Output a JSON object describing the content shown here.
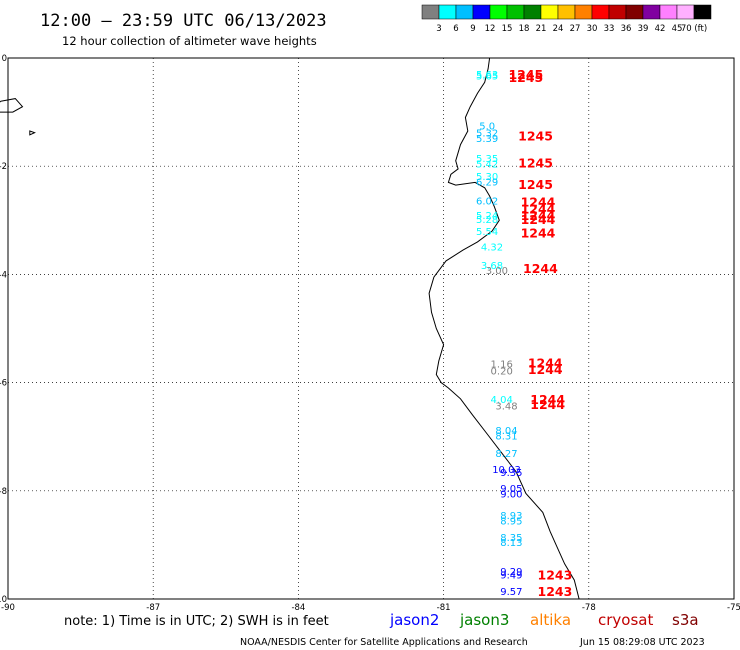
{
  "header": {
    "title": "12:00 – 23:59 UTC 06/13/2023",
    "subtitle": "12 hour collection of altimeter wave heights"
  },
  "colorbar": {
    "colors": [
      "#808080",
      "#00ffff",
      "#00bfff",
      "#0000ff",
      "#00ff00",
      "#00c000",
      "#008000",
      "#ffff00",
      "#ffc000",
      "#ff8000",
      "#ff0000",
      "#c00000",
      "#800000",
      "#8000a0",
      "#ff80ff",
      "#ffb0ff",
      "#000000"
    ],
    "labels": [
      "3",
      "6",
      "9",
      "12",
      "15",
      "18",
      "21",
      "24",
      "27",
      "30",
      "33",
      "36",
      "39",
      "42",
      "45",
      "70 (ft)"
    ]
  },
  "chart_data": {
    "type": "scatter",
    "xlim": [
      -90,
      -75
    ],
    "ylim": [
      -10,
      0
    ],
    "x_ticks": [
      "-90",
      "-87",
      "-84",
      "-81",
      "-78",
      "-75"
    ],
    "y_ticks": [
      "0",
      "-2",
      "-4",
      "-6",
      "-8",
      "-10"
    ],
    "grid": true,
    "wave_heights": [
      {
        "lon": -80.1,
        "lat": -0.3,
        "value": "5.63",
        "color": "#00ffff"
      },
      {
        "lon": -80.1,
        "lat": -0.32,
        "value": "5.65",
        "color": "#00ffff"
      },
      {
        "lon": -80.1,
        "lat": -1.25,
        "value": "5.0",
        "color": "#00bfff"
      },
      {
        "lon": -80.1,
        "lat": -1.38,
        "value": "5.32",
        "color": "#00bfff"
      },
      {
        "lon": -80.1,
        "lat": -1.48,
        "value": "5.39",
        "color": "#00bfff"
      },
      {
        "lon": -80.1,
        "lat": -1.85,
        "value": "5.35",
        "color": "#00ffff"
      },
      {
        "lon": -80.1,
        "lat": -1.95,
        "value": "5.42",
        "color": "#00ffff"
      },
      {
        "lon": -80.1,
        "lat": -2.18,
        "value": "5.30",
        "color": "#00ffff"
      },
      {
        "lon": -80.1,
        "lat": -2.28,
        "value": "6.29",
        "color": "#00bfff"
      },
      {
        "lon": -80.1,
        "lat": -2.63,
        "value": "6.02",
        "color": "#00bfff"
      },
      {
        "lon": -80.1,
        "lat": -2.9,
        "value": "5.24",
        "color": "#00ffff"
      },
      {
        "lon": -80.1,
        "lat": -2.98,
        "value": "5.28",
        "color": "#00ffff"
      },
      {
        "lon": -80.1,
        "lat": -3.2,
        "value": "5.54",
        "color": "#00ffff"
      },
      {
        "lon": -80.0,
        "lat": -3.48,
        "value": "4.32",
        "color": "#00ffff"
      },
      {
        "lon": -80.0,
        "lat": -3.83,
        "value": "3.68",
        "color": "#00ffff"
      },
      {
        "lon": -79.9,
        "lat": -3.92,
        "value": "3.00",
        "color": "#808080"
      },
      {
        "lon": -79.8,
        "lat": -5.65,
        "value": "1.16",
        "color": "#808080"
      },
      {
        "lon": -79.8,
        "lat": -5.78,
        "value": "0.20",
        "color": "#808080"
      },
      {
        "lon": -79.8,
        "lat": -6.3,
        "value": "4.04",
        "color": "#00ffff"
      },
      {
        "lon": -79.7,
        "lat": -6.42,
        "value": "3.48",
        "color": "#808080"
      },
      {
        "lon": -79.7,
        "lat": -6.88,
        "value": "8.04",
        "color": "#00bfff"
      },
      {
        "lon": -79.7,
        "lat": -6.98,
        "value": "8.31",
        "color": "#00bfff"
      },
      {
        "lon": -79.7,
        "lat": -7.3,
        "value": "8.27",
        "color": "#00bfff"
      },
      {
        "lon": -79.7,
        "lat": -7.6,
        "value": "10.03",
        "color": "#0000ff"
      },
      {
        "lon": -79.6,
        "lat": -7.65,
        "value": "9.35",
        "color": "#0000ff"
      },
      {
        "lon": -79.6,
        "lat": -7.95,
        "value": "9.05",
        "color": "#0000ff"
      },
      {
        "lon": -79.6,
        "lat": -8.05,
        "value": "9.00",
        "color": "#0000ff"
      },
      {
        "lon": -79.6,
        "lat": -8.45,
        "value": "8.93",
        "color": "#00bfff"
      },
      {
        "lon": -79.6,
        "lat": -8.55,
        "value": "8.95",
        "color": "#00bfff"
      },
      {
        "lon": -79.6,
        "lat": -8.85,
        "value": "8.35",
        "color": "#00bfff"
      },
      {
        "lon": -79.6,
        "lat": -8.95,
        "value": "8.13",
        "color": "#00bfff"
      },
      {
        "lon": -79.6,
        "lat": -9.48,
        "value": "9.29",
        "color": "#0000ff"
      },
      {
        "lon": -79.6,
        "lat": -9.55,
        "value": "9.49",
        "color": "#0000ff"
      },
      {
        "lon": -79.6,
        "lat": -9.85,
        "value": "9.57",
        "color": "#0000ff"
      }
    ],
    "time_labels": [
      {
        "lon": -79.3,
        "lat": -0.3,
        "value": "1245"
      },
      {
        "lon": -79.3,
        "lat": -0.35,
        "value": "1245"
      },
      {
        "lon": -79.1,
        "lat": -1.43,
        "value": "1245"
      },
      {
        "lon": -79.1,
        "lat": -1.93,
        "value": "1245"
      },
      {
        "lon": -79.1,
        "lat": -2.33,
        "value": "1245"
      },
      {
        "lon": -79.05,
        "lat": -2.65,
        "value": "1244"
      },
      {
        "lon": -79.05,
        "lat": -2.78,
        "value": "1244"
      },
      {
        "lon": -79.05,
        "lat": -2.9,
        "value": "1244"
      },
      {
        "lon": -79.05,
        "lat": -2.98,
        "value": "1244"
      },
      {
        "lon": -79.05,
        "lat": -3.23,
        "value": "1244"
      },
      {
        "lon": -79.0,
        "lat": -3.88,
        "value": "1244"
      },
      {
        "lon": -78.9,
        "lat": -5.63,
        "value": "1244"
      },
      {
        "lon": -78.9,
        "lat": -5.75,
        "value": "1244"
      },
      {
        "lon": -78.85,
        "lat": -6.3,
        "value": "1244"
      },
      {
        "lon": -78.85,
        "lat": -6.4,
        "value": "1244"
      },
      {
        "lon": -78.7,
        "lat": -9.55,
        "value": "1243"
      },
      {
        "lon": -78.7,
        "lat": -9.85,
        "value": "1243"
      }
    ],
    "coastline": [
      [
        -80.05,
        0
      ],
      [
        -80.08,
        -0.2
      ],
      [
        -80.15,
        -0.45
      ],
      [
        -80.3,
        -0.65
      ],
      [
        -80.45,
        -0.9
      ],
      [
        -80.55,
        -1.1
      ],
      [
        -80.5,
        -1.35
      ],
      [
        -80.65,
        -1.6
      ],
      [
        -80.75,
        -1.9
      ],
      [
        -80.7,
        -2.05
      ],
      [
        -80.85,
        -2.15
      ],
      [
        -80.9,
        -2.3
      ],
      [
        -80.75,
        -2.35
      ],
      [
        -80.35,
        -2.3
      ],
      [
        -80.15,
        -2.4
      ],
      [
        -80.05,
        -2.55
      ],
      [
        -79.95,
        -2.75
      ],
      [
        -79.85,
        -3.0
      ],
      [
        -80.0,
        -3.2
      ],
      [
        -80.3,
        -3.4
      ],
      [
        -80.6,
        -3.55
      ],
      [
        -80.95,
        -3.75
      ],
      [
        -81.2,
        -4.05
      ],
      [
        -81.3,
        -4.35
      ],
      [
        -81.25,
        -4.7
      ],
      [
        -81.15,
        -5.0
      ],
      [
        -81.0,
        -5.3
      ],
      [
        -81.1,
        -5.6
      ],
      [
        -81.15,
        -5.85
      ],
      [
        -81.05,
        -6.0
      ],
      [
        -80.9,
        -6.1
      ],
      [
        -80.65,
        -6.3
      ],
      [
        -80.4,
        -6.6
      ],
      [
        -80.1,
        -6.95
      ],
      [
        -79.8,
        -7.3
      ],
      [
        -79.5,
        -7.65
      ],
      [
        -79.3,
        -8.05
      ],
      [
        -78.95,
        -8.4
      ],
      [
        -78.8,
        -8.75
      ],
      [
        -78.65,
        -9.05
      ],
      [
        -78.5,
        -9.35
      ],
      [
        -78.3,
        -9.65
      ],
      [
        -78.2,
        -10.0
      ]
    ],
    "islands": [
      [
        [
          -90.15,
          -0.8
        ],
        [
          -89.85,
          -0.75
        ],
        [
          -89.7,
          -0.9
        ],
        [
          -89.9,
          -1.0
        ],
        [
          -90.2,
          -1.0
        ],
        [
          -90.3,
          -0.9
        ],
        [
          -90.15,
          -0.8
        ]
      ],
      [
        [
          -89.55,
          -1.35
        ],
        [
          -89.45,
          -1.38
        ],
        [
          -89.55,
          -1.42
        ],
        [
          -89.55,
          -1.35
        ]
      ]
    ]
  },
  "footer": {
    "note": "note: 1) Time is in UTC; 2) SWH is in feet",
    "satellites": [
      {
        "name": "jason2",
        "color": "#0000ff"
      },
      {
        "name": "jason3",
        "color": "#008000"
      },
      {
        "name": "altika",
        "color": "#ff8000"
      },
      {
        "name": "cryosat",
        "color": "#c00000"
      },
      {
        "name": "s3a",
        "color": "#800000"
      }
    ],
    "credit": "NOAA/NESDIS Center for Satellite Applications and Research",
    "timestamp": "Jun 15 08:29:08 UTC 2023"
  }
}
